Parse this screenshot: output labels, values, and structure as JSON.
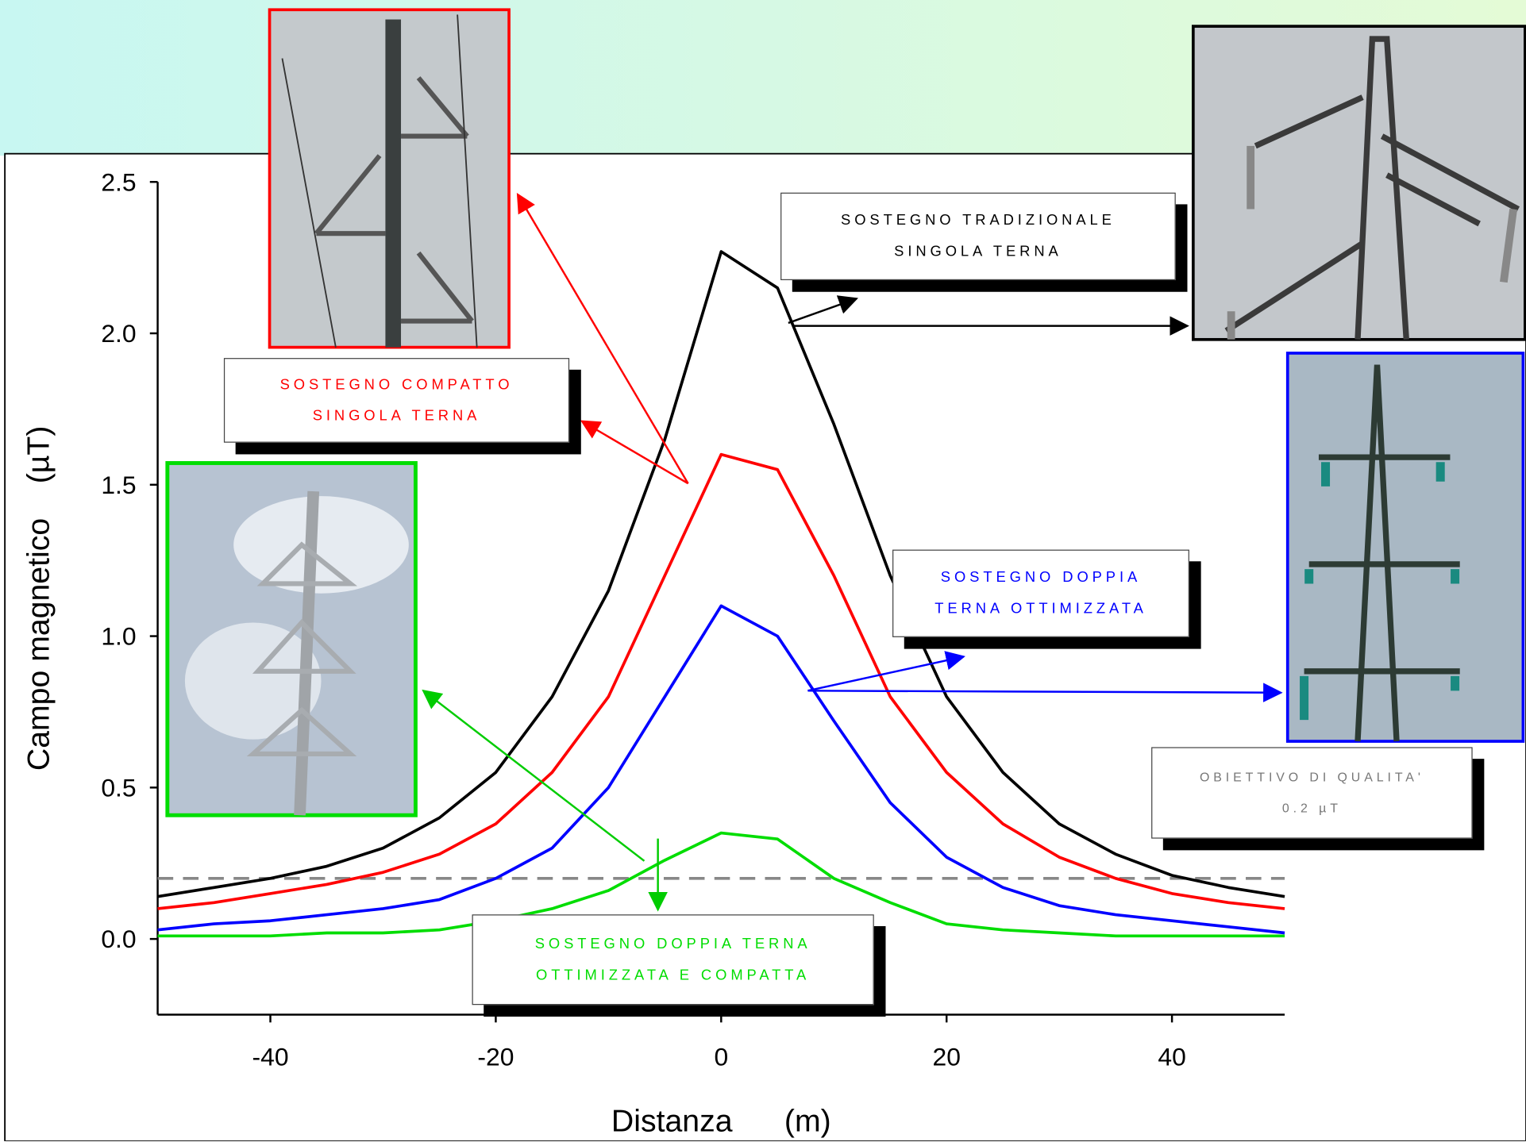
{
  "chart_data": {
    "type": "line",
    "y_label": "Campo magnetico    (µT)",
    "x_label": "Distanza      (m)",
    "x": [
      -50,
      -45,
      -40,
      -35,
      -30,
      -25,
      -20,
      -15,
      -10,
      -5,
      0,
      5,
      10,
      15,
      20,
      25,
      30,
      35,
      40,
      45,
      50
    ],
    "series": [
      {
        "name": "SOSTEGNO TRADIZIONALE SINGOLA TERNA",
        "color": "#000000",
        "values": [
          0.14,
          0.17,
          0.2,
          0.24,
          0.3,
          0.4,
          0.55,
          0.8,
          1.15,
          1.65,
          2.27,
          2.15,
          1.7,
          1.2,
          0.8,
          0.55,
          0.38,
          0.28,
          0.21,
          0.17,
          0.14
        ]
      },
      {
        "name": "SOSTEGNO COMPATTO SINGOLA TERNA",
        "color": "#ff0000",
        "values": [
          0.1,
          0.12,
          0.15,
          0.18,
          0.22,
          0.28,
          0.38,
          0.55,
          0.8,
          1.2,
          1.6,
          1.55,
          1.2,
          0.8,
          0.55,
          0.38,
          0.27,
          0.2,
          0.15,
          0.12,
          0.1
        ]
      },
      {
        "name": "SOSTEGNO DOPPIA TERNA OTTIMIZZATA",
        "color": "#0000ff",
        "values": [
          0.03,
          0.05,
          0.06,
          0.08,
          0.1,
          0.13,
          0.2,
          0.3,
          0.5,
          0.8,
          1.1,
          1.0,
          0.72,
          0.45,
          0.27,
          0.17,
          0.11,
          0.08,
          0.06,
          0.04,
          0.02
        ]
      },
      {
        "name": "SOSTEGNO DOPPIA TERNA OTTIMIZZATA E COMPATTA",
        "color": "#00dd00",
        "values": [
          0.01,
          0.01,
          0.01,
          0.02,
          0.02,
          0.03,
          0.06,
          0.1,
          0.16,
          0.26,
          0.35,
          0.33,
          0.2,
          0.12,
          0.05,
          0.03,
          0.02,
          0.01,
          0.01,
          0.01,
          0.01
        ]
      }
    ],
    "reference_line": {
      "value": 0.2,
      "name": "OBIETTIVO DI QUALITA'",
      "label": "0.2 µT",
      "color": "#888888"
    },
    "xlim": [
      -50,
      50
    ],
    "xticks": [
      -40,
      -20,
      0,
      20,
      40
    ],
    "ylim": [
      -0.25,
      2.5
    ],
    "yticks": [
      {
        "value": 0,
        "label": "0.0"
      },
      0.5,
      {
        "value": 1,
        "label": "1.0"
      },
      1.5,
      {
        "value": 2,
        "label": "2.0"
      },
      2.5
    ]
  }
}
